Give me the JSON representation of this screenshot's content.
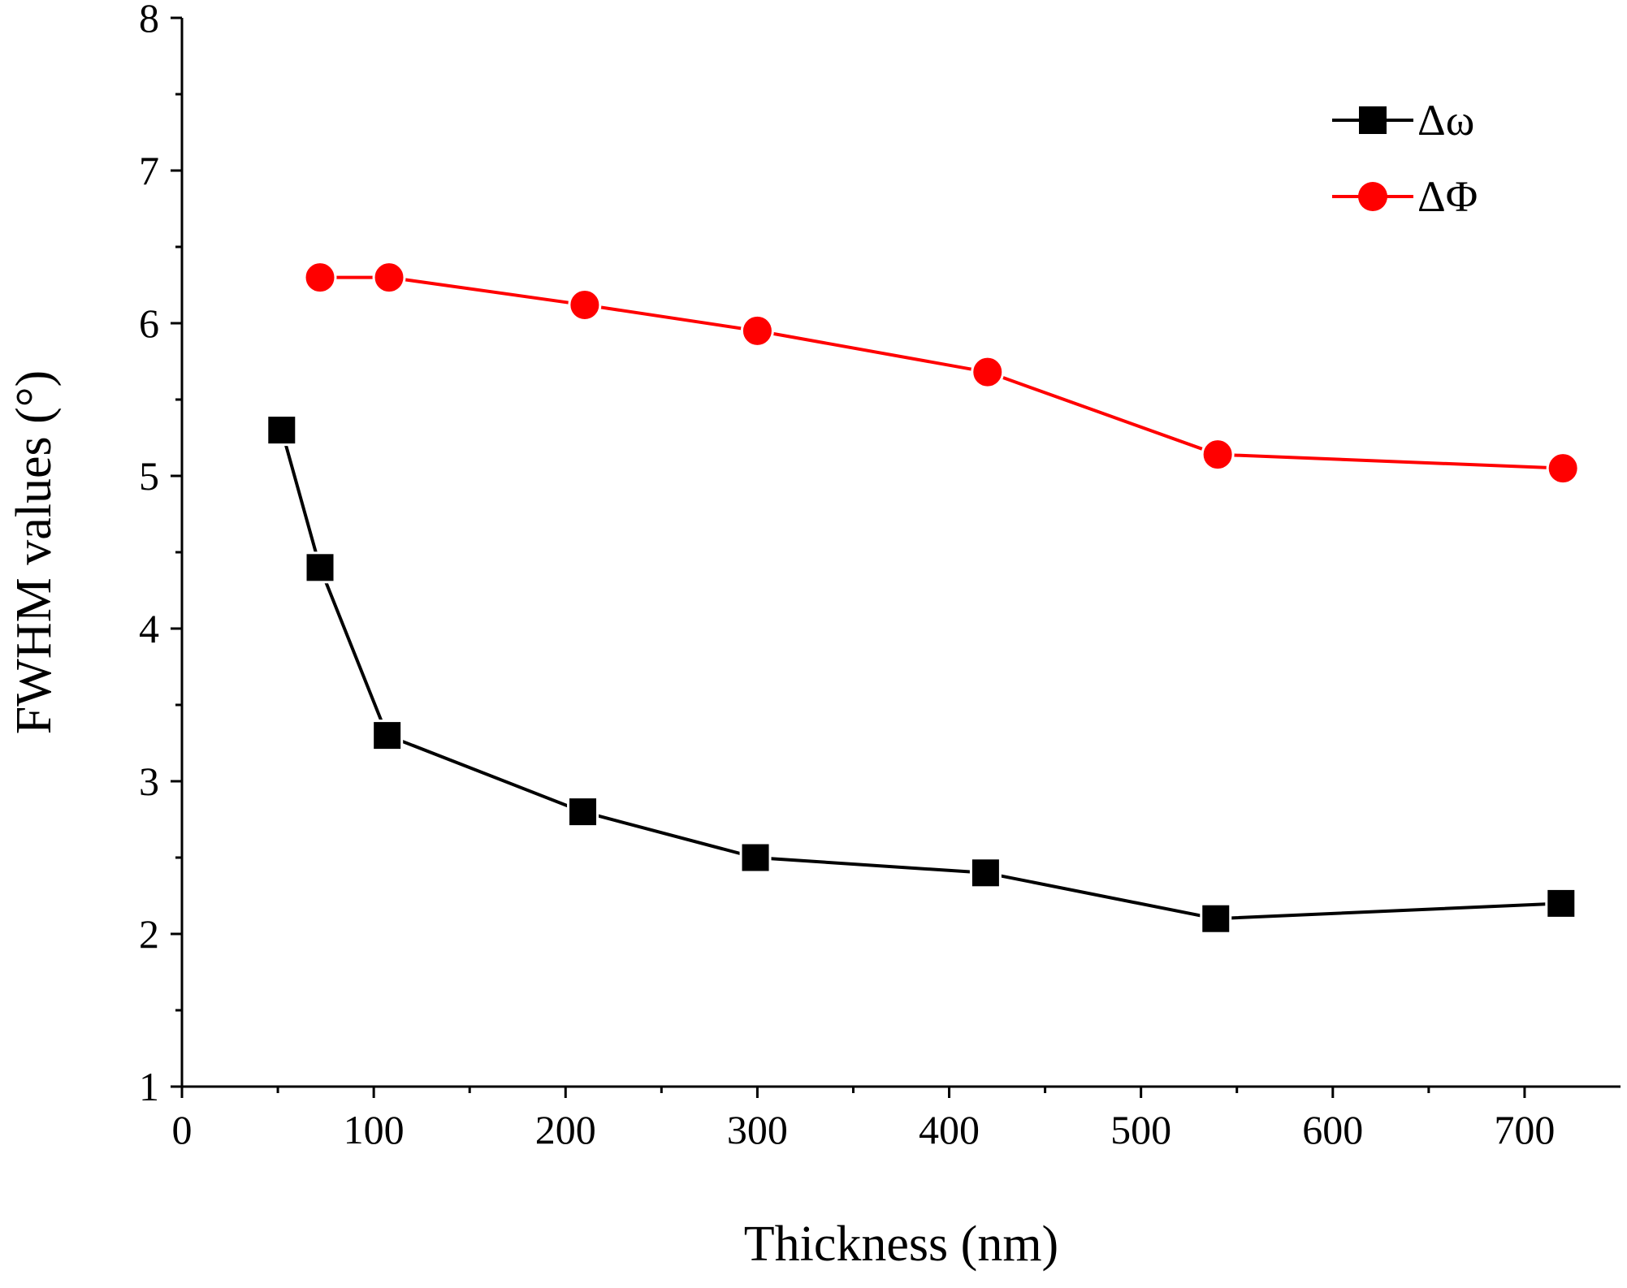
{
  "chart_data": {
    "type": "line",
    "title": "",
    "xlabel": "Thickness (nm)",
    "ylabel": "FWHM values (°)",
    "xlim": [
      0,
      750
    ],
    "ylim": [
      1,
      8
    ],
    "x_ticks": [
      0,
      100,
      200,
      300,
      400,
      500,
      600,
      700
    ],
    "y_ticks": [
      1,
      2,
      3,
      4,
      5,
      6,
      7,
      8
    ],
    "grid": false,
    "legend_position": "top-right",
    "series": [
      {
        "name": "Δω",
        "color": "#000000",
        "marker": "square",
        "x": [
          52,
          72,
          107,
          209,
          299,
          419,
          539,
          719
        ],
        "y": [
          5.3,
          4.4,
          3.3,
          2.8,
          2.5,
          2.4,
          2.1,
          2.2
        ]
      },
      {
        "name": "ΔΦ",
        "color": "#ff0000",
        "marker": "circle",
        "x": [
          72,
          108,
          210,
          300,
          420,
          540,
          720
        ],
        "y": [
          6.3,
          6.3,
          6.12,
          5.95,
          5.68,
          5.14,
          5.05
        ]
      }
    ]
  }
}
